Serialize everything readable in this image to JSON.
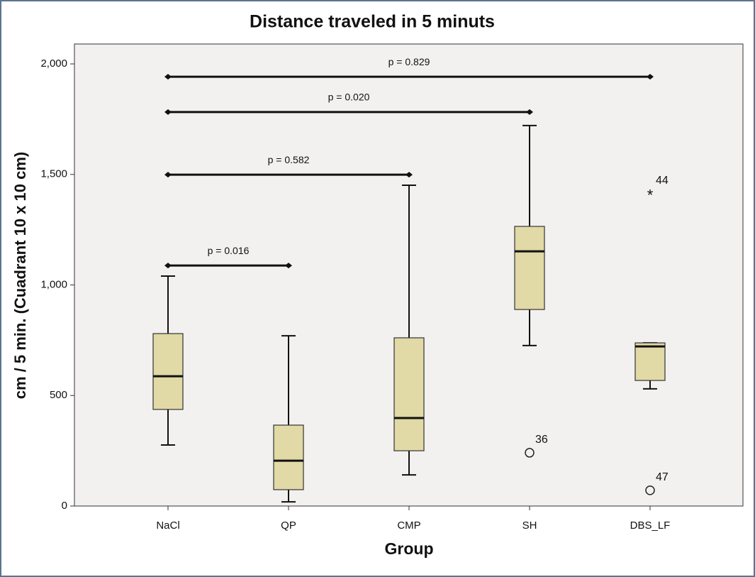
{
  "chart_data": {
    "type": "box",
    "title": "Distance traveled in 5 minuts",
    "x_label": "Group",
    "y_label": "cm / 5 min. (Cuadrant 10 x 10 cm)",
    "categories": [
      "NaCl",
      "QP",
      "CMP",
      "SH",
      "DBS_LF"
    ],
    "color": "#e1d9a6",
    "ylim": [
      0,
      2090
    ],
    "yticks": [
      0,
      500,
      {
        "value": 1000,
        "label": "1,000"
      },
      {
        "value": 1500,
        "label": "1,500"
      },
      {
        "value": 2000,
        "label": "2,000"
      }
    ],
    "boxes": [
      {
        "low": 276,
        "q1": 437,
        "median": 587,
        "q3": 780,
        "high": 1040,
        "outliers": []
      },
      {
        "low": 19,
        "q1": 74,
        "median": 205,
        "q3": 366,
        "high": 770,
        "outliers": []
      },
      {
        "low": 141,
        "q1": 250,
        "median": 398,
        "q3": 761,
        "high": 1451,
        "outliers": []
      },
      {
        "low": 726,
        "q1": 889,
        "median": 1152,
        "q3": 1265,
        "high": 1721,
        "outliers": [
          {
            "value": 241,
            "label": "36",
            "marker": "circle"
          }
        ]
      },
      {
        "low": 530,
        "q1": 568,
        "median": 722,
        "q3": 738,
        "high": 738,
        "outliers": [
          {
            "value": 1413,
            "label": "44",
            "marker": "star"
          },
          {
            "value": 71,
            "label": "47",
            "marker": "circle"
          }
        ]
      }
    ],
    "comparisons": [
      {
        "from": "NaCl",
        "to": "QP",
        "y": 1088,
        "label": "p = 0.016"
      },
      {
        "from": "NaCl",
        "to": "CMP",
        "y": 1499,
        "label": "p = 0.582"
      },
      {
        "from": "NaCl",
        "to": "SH",
        "y": 1782,
        "label": "p = 0.020"
      },
      {
        "from": "NaCl",
        "to": "DBS_LF",
        "y": 1942,
        "label": "p = 0.829"
      }
    ]
  }
}
